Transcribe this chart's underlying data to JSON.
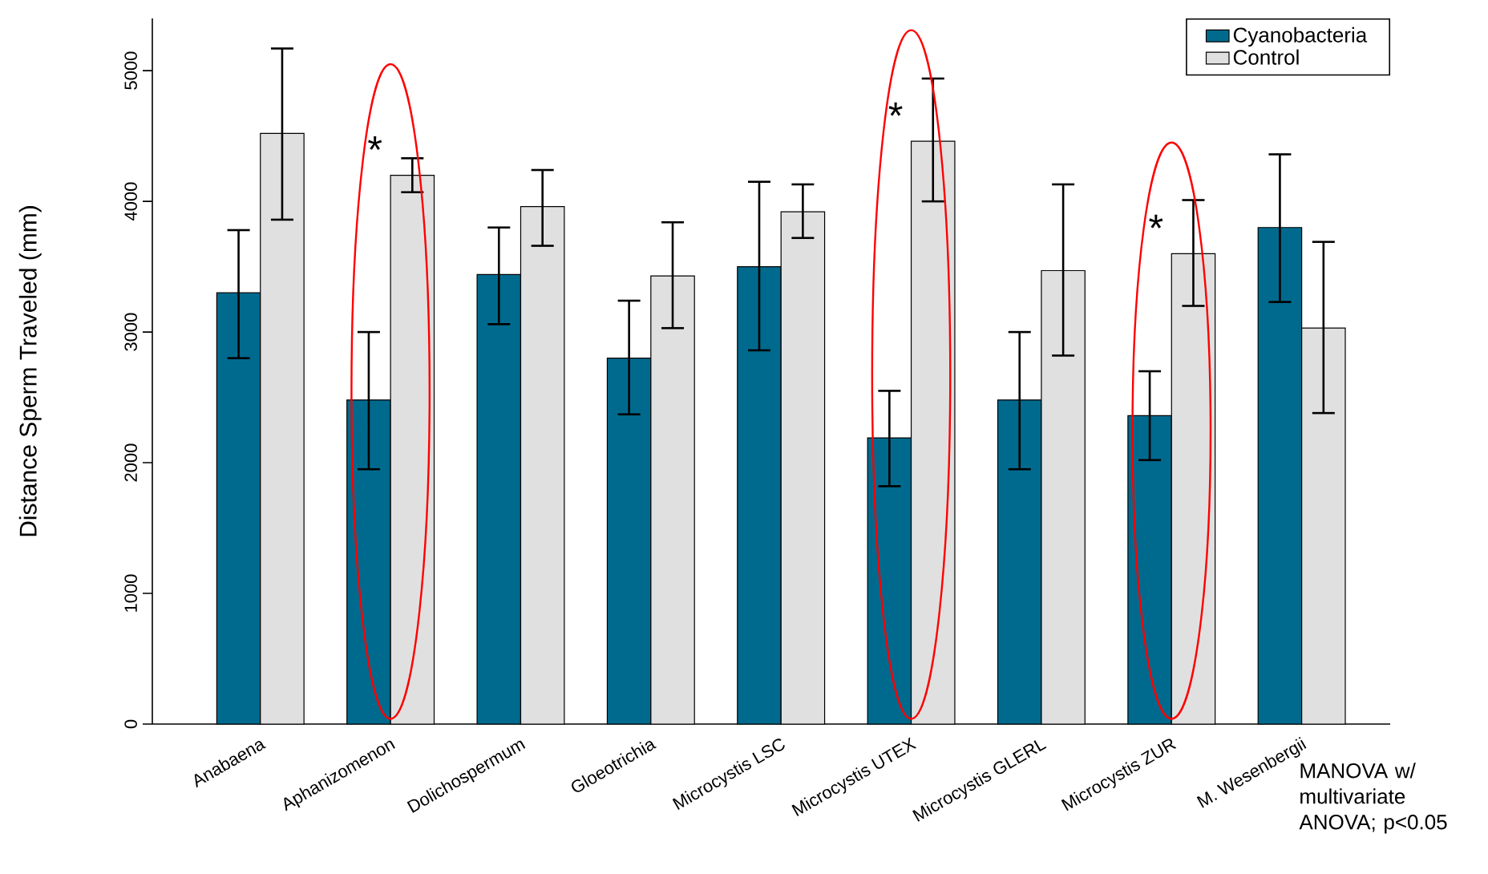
{
  "chart_data": {
    "type": "bar",
    "ylabel": "Distance Sperm Traveled (mm)",
    "categories": [
      "Anabaena",
      "Aphanizomenon",
      "Dolichospermum",
      "Gloeotrichia",
      "Microcystis LSC",
      "Microcystis UTEX",
      "Microcystis GLERL",
      "Microcystis ZUR",
      "M. Wesenbergii"
    ],
    "series": [
      {
        "name": "Cyanobacteria",
        "color": "#006a8e",
        "values": [
          3300,
          2480,
          3440,
          2800,
          3500,
          2190,
          2480,
          2360,
          3800
        ],
        "errors": [
          [
            2800,
            3780
          ],
          [
            1950,
            3000
          ],
          [
            3060,
            3800
          ],
          [
            2370,
            3240
          ],
          [
            2860,
            4150
          ],
          [
            1820,
            2550
          ],
          [
            1950,
            3000
          ],
          [
            2020,
            2700
          ],
          [
            3230,
            4360
          ]
        ]
      },
      {
        "name": "Control",
        "color": "#e0e0e0",
        "values": [
          4520,
          4200,
          3960,
          3430,
          3920,
          4460,
          3470,
          3600,
          3030
        ],
        "errors": [
          [
            3860,
            5170
          ],
          [
            4070,
            4330
          ],
          [
            3660,
            4240
          ],
          [
            3030,
            3840
          ],
          [
            3720,
            4130
          ],
          [
            4000,
            4940
          ],
          [
            2820,
            4130
          ],
          [
            3200,
            4010
          ],
          [
            2380,
            3690
          ]
        ]
      }
    ],
    "ylim": [
      0,
      5400
    ],
    "yticks": [
      0,
      1000,
      2000,
      3000,
      4000,
      5000
    ],
    "legend": "top right",
    "annotations": [
      {
        "text": "*",
        "x": "Aphanizomenon",
        "y": 4200
      },
      {
        "text": "*",
        "x": "Microcystis UTEX",
        "y": 4460
      },
      {
        "text": "*",
        "x": "Microcystis ZUR",
        "y": 3600
      },
      "MANOVA w/ multivariate ANOVA; p<0.05"
    ]
  }
}
